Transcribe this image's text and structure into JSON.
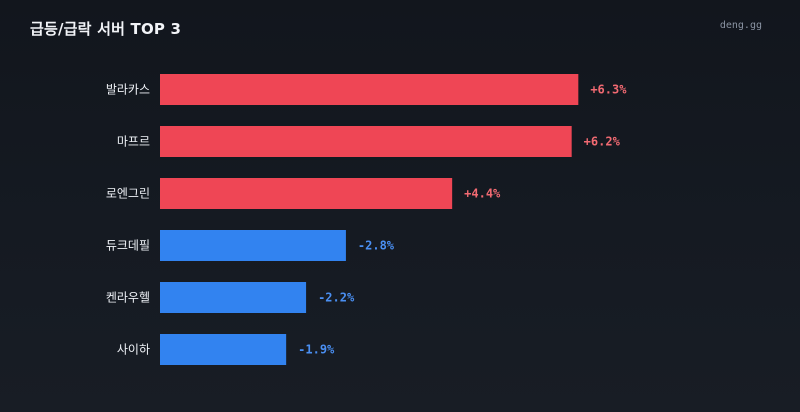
{
  "header": {
    "title": "급등/급락 서버 TOP 3",
    "brand": "deng.gg"
  },
  "colors": {
    "up": "#ef4655",
    "down": "#3283f0",
    "up_text": "#f26a72",
    "down_text": "#4a8ff2"
  },
  "chart_data": {
    "type": "bar",
    "orientation": "horizontal",
    "title": "급등/급락 서버 TOP 3",
    "categories": [
      "발라카스",
      "마프르",
      "로엔그린",
      "듀크데필",
      "켄라우헬",
      "사이하"
    ],
    "values": [
      6.3,
      6.2,
      4.4,
      -2.8,
      -2.2,
      -1.9
    ],
    "value_labels": [
      "+6.3%",
      "+6.2%",
      "+4.4%",
      "-2.8%",
      "-2.2%",
      "-1.9%"
    ],
    "xlabel": "",
    "ylabel": "",
    "xlim": [
      0,
      7
    ],
    "grid": false,
    "legend": "none"
  }
}
